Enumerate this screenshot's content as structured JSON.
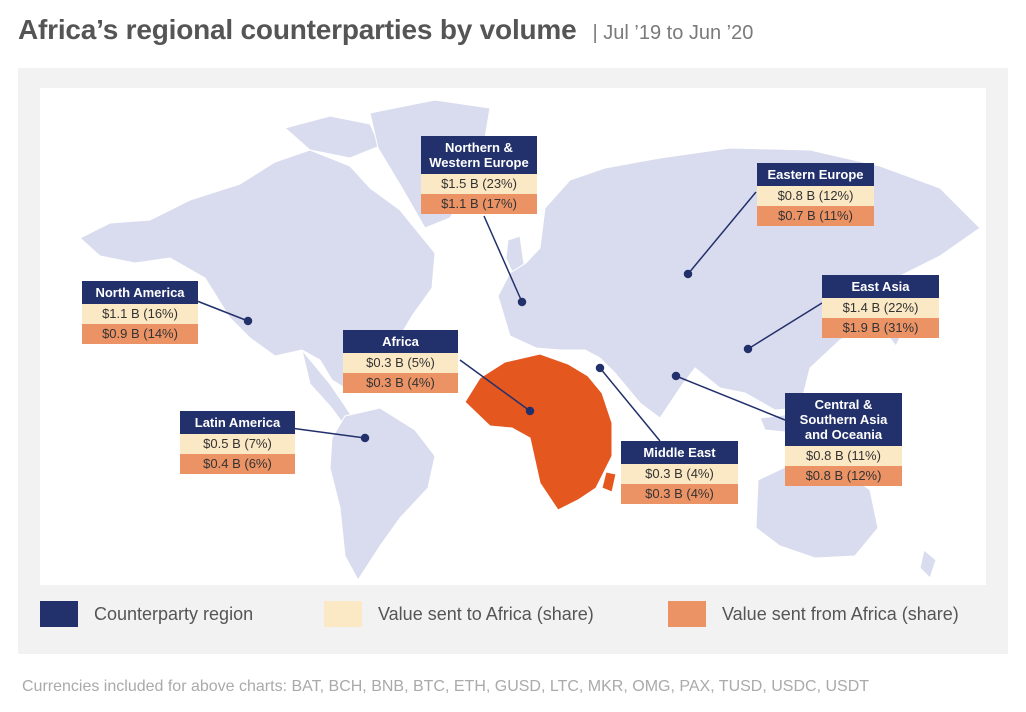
{
  "header": {
    "title": "Africa’s regional counterparties by volume",
    "subtitle": "| Jul ’19 to Jun ’20"
  },
  "colors": {
    "counterparty_region": "#22306b",
    "value_sent_to": "#fbe8c4",
    "value_sent_from": "#ec9366",
    "africa": "#e4571f",
    "land": "#d9dcee"
  },
  "regions": [
    {
      "id": "north-america",
      "name": "North America",
      "sent_to": "$1.1 B (16%)",
      "sent_from": "$0.9 B (14%)"
    },
    {
      "id": "latin-america",
      "name": "Latin America",
      "sent_to": "$0.5 B (7%)",
      "sent_from": "$0.4 B (6%)"
    },
    {
      "id": "northern-western-europe",
      "name": "Northern & Western Europe",
      "sent_to": "$1.5 B (23%)",
      "sent_from": "$1.1 B (17%)"
    },
    {
      "id": "africa",
      "name": "Africa",
      "sent_to": "$0.3 B (5%)",
      "sent_from": "$0.3 B (4%)"
    },
    {
      "id": "middle-east",
      "name": "Middle East",
      "sent_to": "$0.3 B (4%)",
      "sent_from": "$0.3 B (4%)"
    },
    {
      "id": "eastern-europe",
      "name": "Eastern Europe",
      "sent_to": "$0.8 B (12%)",
      "sent_from": "$0.7 B (11%)"
    },
    {
      "id": "east-asia",
      "name": "East Asia",
      "sent_to": "$1.4 B (22%)",
      "sent_from": "$1.9 B (31%)"
    },
    {
      "id": "central-southern-asia-oceania",
      "name": "Central & Southern Asia and Oceania",
      "sent_to": "$0.8 B (11%)",
      "sent_from": "$0.8 B (12%)"
    }
  ],
  "legend": {
    "counterparty_region": "Counterparty region",
    "value_sent_to": "Value sent to Africa (share)",
    "value_sent_from": "Value sent from Africa (share)"
  },
  "footnote": "Currencies included for above charts: BAT, BCH, BNB, BTC, ETH, GUSD, LTC, MKR, OMG, PAX, TUSD, USDC, USDT"
}
